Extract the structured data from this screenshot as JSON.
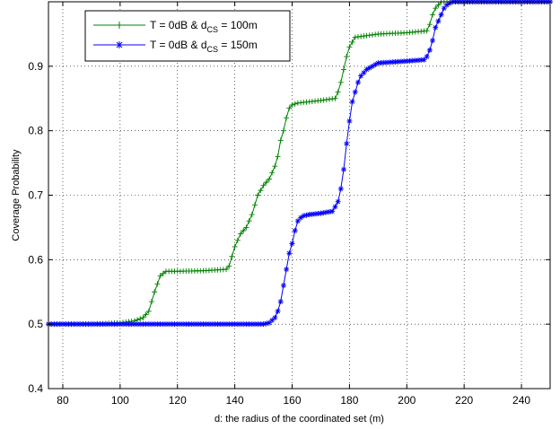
{
  "chart_data": {
    "type": "line",
    "title": "",
    "xlabel": "d: the radius of the coordinated set (m)",
    "ylabel": "Coverage Probability",
    "xlim": [
      75,
      250
    ],
    "ylim": [
      0.4,
      1.0
    ],
    "xticks": [
      80,
      100,
      120,
      140,
      160,
      180,
      200,
      220,
      240
    ],
    "yticks": [
      0.4,
      0.5,
      0.6,
      0.7,
      0.8,
      0.9
    ],
    "grid": true,
    "legend_position": "top-left",
    "series": [
      {
        "name_parts": [
          "T = 0dB  & d",
          "CS",
          " = 100m"
        ],
        "color": "#008000",
        "marker": "plus",
        "x": [
          75,
          90,
          100,
          105,
          108,
          110,
          112,
          114,
          116,
          120,
          130,
          137,
          138,
          139,
          140,
          142,
          144,
          146,
          148,
          150,
          152,
          154,
          155,
          156,
          157,
          158,
          159,
          160,
          162,
          170,
          175,
          176,
          177,
          178,
          179,
          180,
          182,
          190,
          200,
          207,
          208,
          209,
          210,
          211,
          212,
          213,
          214,
          216,
          220,
          240,
          250
        ],
        "y": [
          0.5,
          0.5,
          0.502,
          0.505,
          0.51,
          0.52,
          0.55,
          0.575,
          0.582,
          0.582,
          0.583,
          0.585,
          0.59,
          0.605,
          0.62,
          0.64,
          0.65,
          0.67,
          0.7,
          0.715,
          0.725,
          0.745,
          0.76,
          0.785,
          0.8,
          0.82,
          0.835,
          0.84,
          0.843,
          0.847,
          0.85,
          0.86,
          0.875,
          0.895,
          0.915,
          0.93,
          0.945,
          0.95,
          0.952,
          0.955,
          0.965,
          0.98,
          0.99,
          0.995,
          1.0,
          1.0,
          1.0,
          1.0,
          1.0,
          1.0,
          1.0
        ]
      },
      {
        "name_parts": [
          "T = 0dB & d",
          "CS",
          " = 150m"
        ],
        "color": "#0000ff",
        "marker": "star",
        "x": [
          75,
          100,
          120,
          140,
          150,
          152,
          154,
          155,
          156,
          157,
          158,
          159,
          160,
          161,
          162,
          163,
          164,
          166,
          170,
          174,
          175,
          176,
          177,
          178,
          179,
          180,
          181,
          182,
          183,
          184,
          185,
          186,
          188,
          190,
          200,
          206,
          207,
          208,
          209,
          210,
          211,
          212,
          213,
          214,
          215,
          216,
          218,
          220,
          230,
          240,
          250
        ],
        "y": [
          0.5,
          0.5,
          0.5,
          0.5,
          0.5,
          0.502,
          0.51,
          0.52,
          0.535,
          0.56,
          0.585,
          0.61,
          0.625,
          0.645,
          0.66,
          0.665,
          0.668,
          0.67,
          0.672,
          0.675,
          0.682,
          0.69,
          0.71,
          0.74,
          0.78,
          0.815,
          0.845,
          0.86,
          0.875,
          0.885,
          0.89,
          0.895,
          0.9,
          0.905,
          0.908,
          0.91,
          0.915,
          0.925,
          0.94,
          0.96,
          0.97,
          0.98,
          0.99,
          0.995,
          0.998,
          1.0,
          1.0,
          1.0,
          1.0,
          1.0,
          1.0
        ]
      }
    ]
  }
}
